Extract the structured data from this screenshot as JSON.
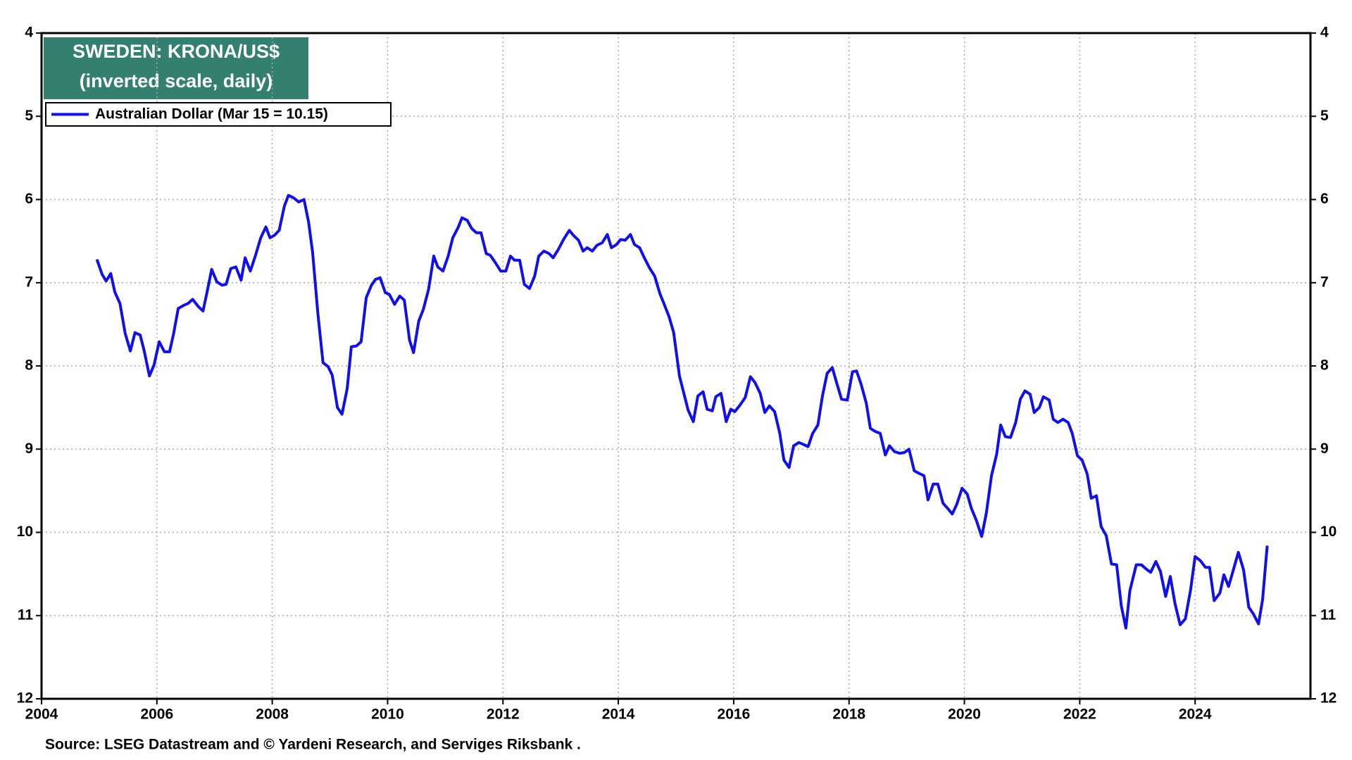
{
  "chart_data": {
    "type": "line",
    "title": "SWEDEN: KRONA/US$",
    "subtitle": "(inverted scale, daily)",
    "source": "Source: LSEG Datastream and © Yardeni Research, and Serviges Riksbank .",
    "xlim": [
      2004,
      2026
    ],
    "xticks": [
      2004,
      2006,
      2008,
      2010,
      2012,
      2014,
      2016,
      2018,
      2020,
      2022,
      2024
    ],
    "ylim": [
      4,
      12
    ],
    "yticks": [
      4,
      5,
      6,
      7,
      8,
      9,
      10,
      11,
      12
    ],
    "y_inverted": true,
    "grid": true,
    "legend": "top-left",
    "series": [
      {
        "name": "Australian Dollar (Mar 15 = 10.15)",
        "color": "#1010ee",
        "x": [
          2004.96,
          2005.05,
          2005.12,
          2005.2,
          2005.27,
          2005.36,
          2005.45,
          2005.54,
          2005.62,
          2005.71,
          2005.78,
          2005.87,
          2005.95,
          2006.04,
          2006.13,
          2006.22,
          2006.29,
          2006.37,
          2006.47,
          2006.54,
          2006.62,
          2006.71,
          2006.8,
          2006.87,
          2006.95,
          2007.04,
          2007.13,
          2007.2,
          2007.28,
          2007.37,
          2007.46,
          2007.53,
          2007.62,
          2007.71,
          2007.8,
          2007.89,
          2007.96,
          2008.04,
          2008.12,
          2008.21,
          2008.28,
          2008.37,
          2008.46,
          2008.55,
          2008.63,
          2008.7,
          2008.79,
          2008.88,
          2008.97,
          2009.04,
          2009.13,
          2009.21,
          2009.3,
          2009.37,
          2009.46,
          2009.54,
          2009.63,
          2009.72,
          2009.79,
          2009.87,
          2009.96,
          2010.03,
          2010.12,
          2010.21,
          2010.29,
          2010.38,
          2010.45,
          2010.54,
          2010.62,
          2010.71,
          2010.8,
          2010.87,
          2010.96,
          2011.05,
          2011.13,
          2011.22,
          2011.29,
          2011.38,
          2011.46,
          2011.54,
          2011.62,
          2011.71,
          2011.78,
          2011.87,
          2011.96,
          2012.05,
          2012.13,
          2012.2,
          2012.29,
          2012.37,
          2012.46,
          2012.55,
          2012.62,
          2012.71,
          2012.8,
          2012.87,
          2012.96,
          2013.05,
          2013.15,
          2013.22,
          2013.31,
          2013.39,
          2013.46,
          2013.55,
          2013.63,
          2013.72,
          2013.81,
          2013.88,
          2013.97,
          2014.04,
          2014.12,
          2014.21,
          2014.28,
          2014.37,
          2014.45,
          2014.54,
          2014.63,
          2014.72,
          2014.79,
          2014.88,
          2014.96,
          2015.06,
          2015.14,
          2015.21,
          2015.3,
          2015.38,
          2015.47,
          2015.54,
          2015.63,
          2015.69,
          2015.78,
          2015.87,
          2015.95,
          2016.02,
          2016.11,
          2016.2,
          2016.29,
          2016.37,
          2016.46,
          2016.54,
          2016.62,
          2016.71,
          2016.8,
          2016.87,
          2016.96,
          2017.04,
          2017.13,
          2017.2,
          2017.29,
          2017.37,
          2017.46,
          2017.54,
          2017.62,
          2017.71,
          2017.78,
          2017.87,
          2017.97,
          2018.06,
          2018.13,
          2018.21,
          2018.3,
          2018.37,
          2018.46,
          2018.54,
          2018.63,
          2018.7,
          2018.79,
          2018.88,
          2018.96,
          2019.04,
          2019.13,
          2019.21,
          2019.3,
          2019.37,
          2019.46,
          2019.54,
          2019.63,
          2019.72,
          2019.79,
          2019.87,
          2019.96,
          2020.05,
          2020.12,
          2020.21,
          2020.3,
          2020.38,
          2020.47,
          2020.56,
          2020.63,
          2020.71,
          2020.8,
          2020.89,
          2020.97,
          2021.05,
          2021.14,
          2021.21,
          2021.3,
          2021.37,
          2021.47,
          2021.54,
          2021.62,
          2021.71,
          2021.8,
          2021.87,
          2021.96,
          2022.04,
          2022.13,
          2022.2,
          2022.29,
          2022.37,
          2022.46,
          2022.55,
          2022.64,
          2022.72,
          2022.8,
          2022.87,
          2022.98,
          2023.07,
          2023.15,
          2023.23,
          2023.32,
          2023.4,
          2023.49,
          2023.57,
          2023.65,
          2023.74,
          2023.83,
          2023.92,
          2024.0,
          2024.09,
          2024.18,
          2024.25,
          2024.33,
          2024.43,
          2024.5,
          2024.58,
          2024.66,
          2024.75,
          2024.84,
          2024.93,
          2025.01,
          2025.1,
          2025.17,
          2025.25
        ],
        "values": [
          6.72,
          6.9,
          6.98,
          6.89,
          7.11,
          7.25,
          7.61,
          7.82,
          7.6,
          7.63,
          7.82,
          8.12,
          7.99,
          7.71,
          7.83,
          7.83,
          7.61,
          7.31,
          7.27,
          7.25,
          7.2,
          7.28,
          7.34,
          7.11,
          6.84,
          6.99,
          7.03,
          7.02,
          6.83,
          6.81,
          6.97,
          6.7,
          6.86,
          6.67,
          6.46,
          6.33,
          6.46,
          6.43,
          6.37,
          6.08,
          5.95,
          5.98,
          6.03,
          6.0,
          6.27,
          6.64,
          7.36,
          7.96,
          8.01,
          8.11,
          8.5,
          8.58,
          8.27,
          7.77,
          7.76,
          7.71,
          7.18,
          7.03,
          6.96,
          6.94,
          7.12,
          7.14,
          7.26,
          7.16,
          7.21,
          7.69,
          7.84,
          7.46,
          7.32,
          7.08,
          6.68,
          6.81,
          6.86,
          6.68,
          6.46,
          6.34,
          6.22,
          6.25,
          6.35,
          6.4,
          6.4,
          6.65,
          6.67,
          6.76,
          6.86,
          6.86,
          6.68,
          6.73,
          6.73,
          7.02,
          7.07,
          6.92,
          6.68,
          6.62,
          6.65,
          6.7,
          6.6,
          6.48,
          6.37,
          6.43,
          6.49,
          6.62,
          6.58,
          6.62,
          6.55,
          6.52,
          6.42,
          6.58,
          6.54,
          6.48,
          6.49,
          6.42,
          6.54,
          6.58,
          6.7,
          6.82,
          6.92,
          7.13,
          7.25,
          7.41,
          7.6,
          8.12,
          8.34,
          8.53,
          8.67,
          8.36,
          8.31,
          8.52,
          8.54,
          8.37,
          8.33,
          8.67,
          8.52,
          8.55,
          8.47,
          8.38,
          8.13,
          8.2,
          8.33,
          8.56,
          8.48,
          8.55,
          8.81,
          9.13,
          9.22,
          8.96,
          8.92,
          8.94,
          8.97,
          8.81,
          8.71,
          8.36,
          8.09,
          8.02,
          8.19,
          8.4,
          8.41,
          8.07,
          8.06,
          8.22,
          8.45,
          8.75,
          8.79,
          8.81,
          9.07,
          8.96,
          9.03,
          9.05,
          9.04,
          9.0,
          9.26,
          9.29,
          9.32,
          9.61,
          9.42,
          9.42,
          9.65,
          9.72,
          9.78,
          9.66,
          9.47,
          9.54,
          9.71,
          9.86,
          10.05,
          9.77,
          9.32,
          9.06,
          8.71,
          8.85,
          8.86,
          8.68,
          8.4,
          8.3,
          8.34,
          8.56,
          8.5,
          8.37,
          8.41,
          8.64,
          8.68,
          8.64,
          8.68,
          8.81,
          9.08,
          9.13,
          9.3,
          9.59,
          9.56,
          9.93,
          10.04,
          10.38,
          10.39,
          10.88,
          11.15,
          10.7,
          10.39,
          10.39,
          10.44,
          10.48,
          10.35,
          10.47,
          10.77,
          10.53,
          10.85,
          11.11,
          11.04,
          10.7,
          10.29,
          10.34,
          10.42,
          10.42,
          10.82,
          10.73,
          10.51,
          10.65,
          10.46,
          10.24,
          10.45,
          10.9,
          10.98,
          11.1,
          10.81,
          10.16
        ]
      }
    ]
  }
}
